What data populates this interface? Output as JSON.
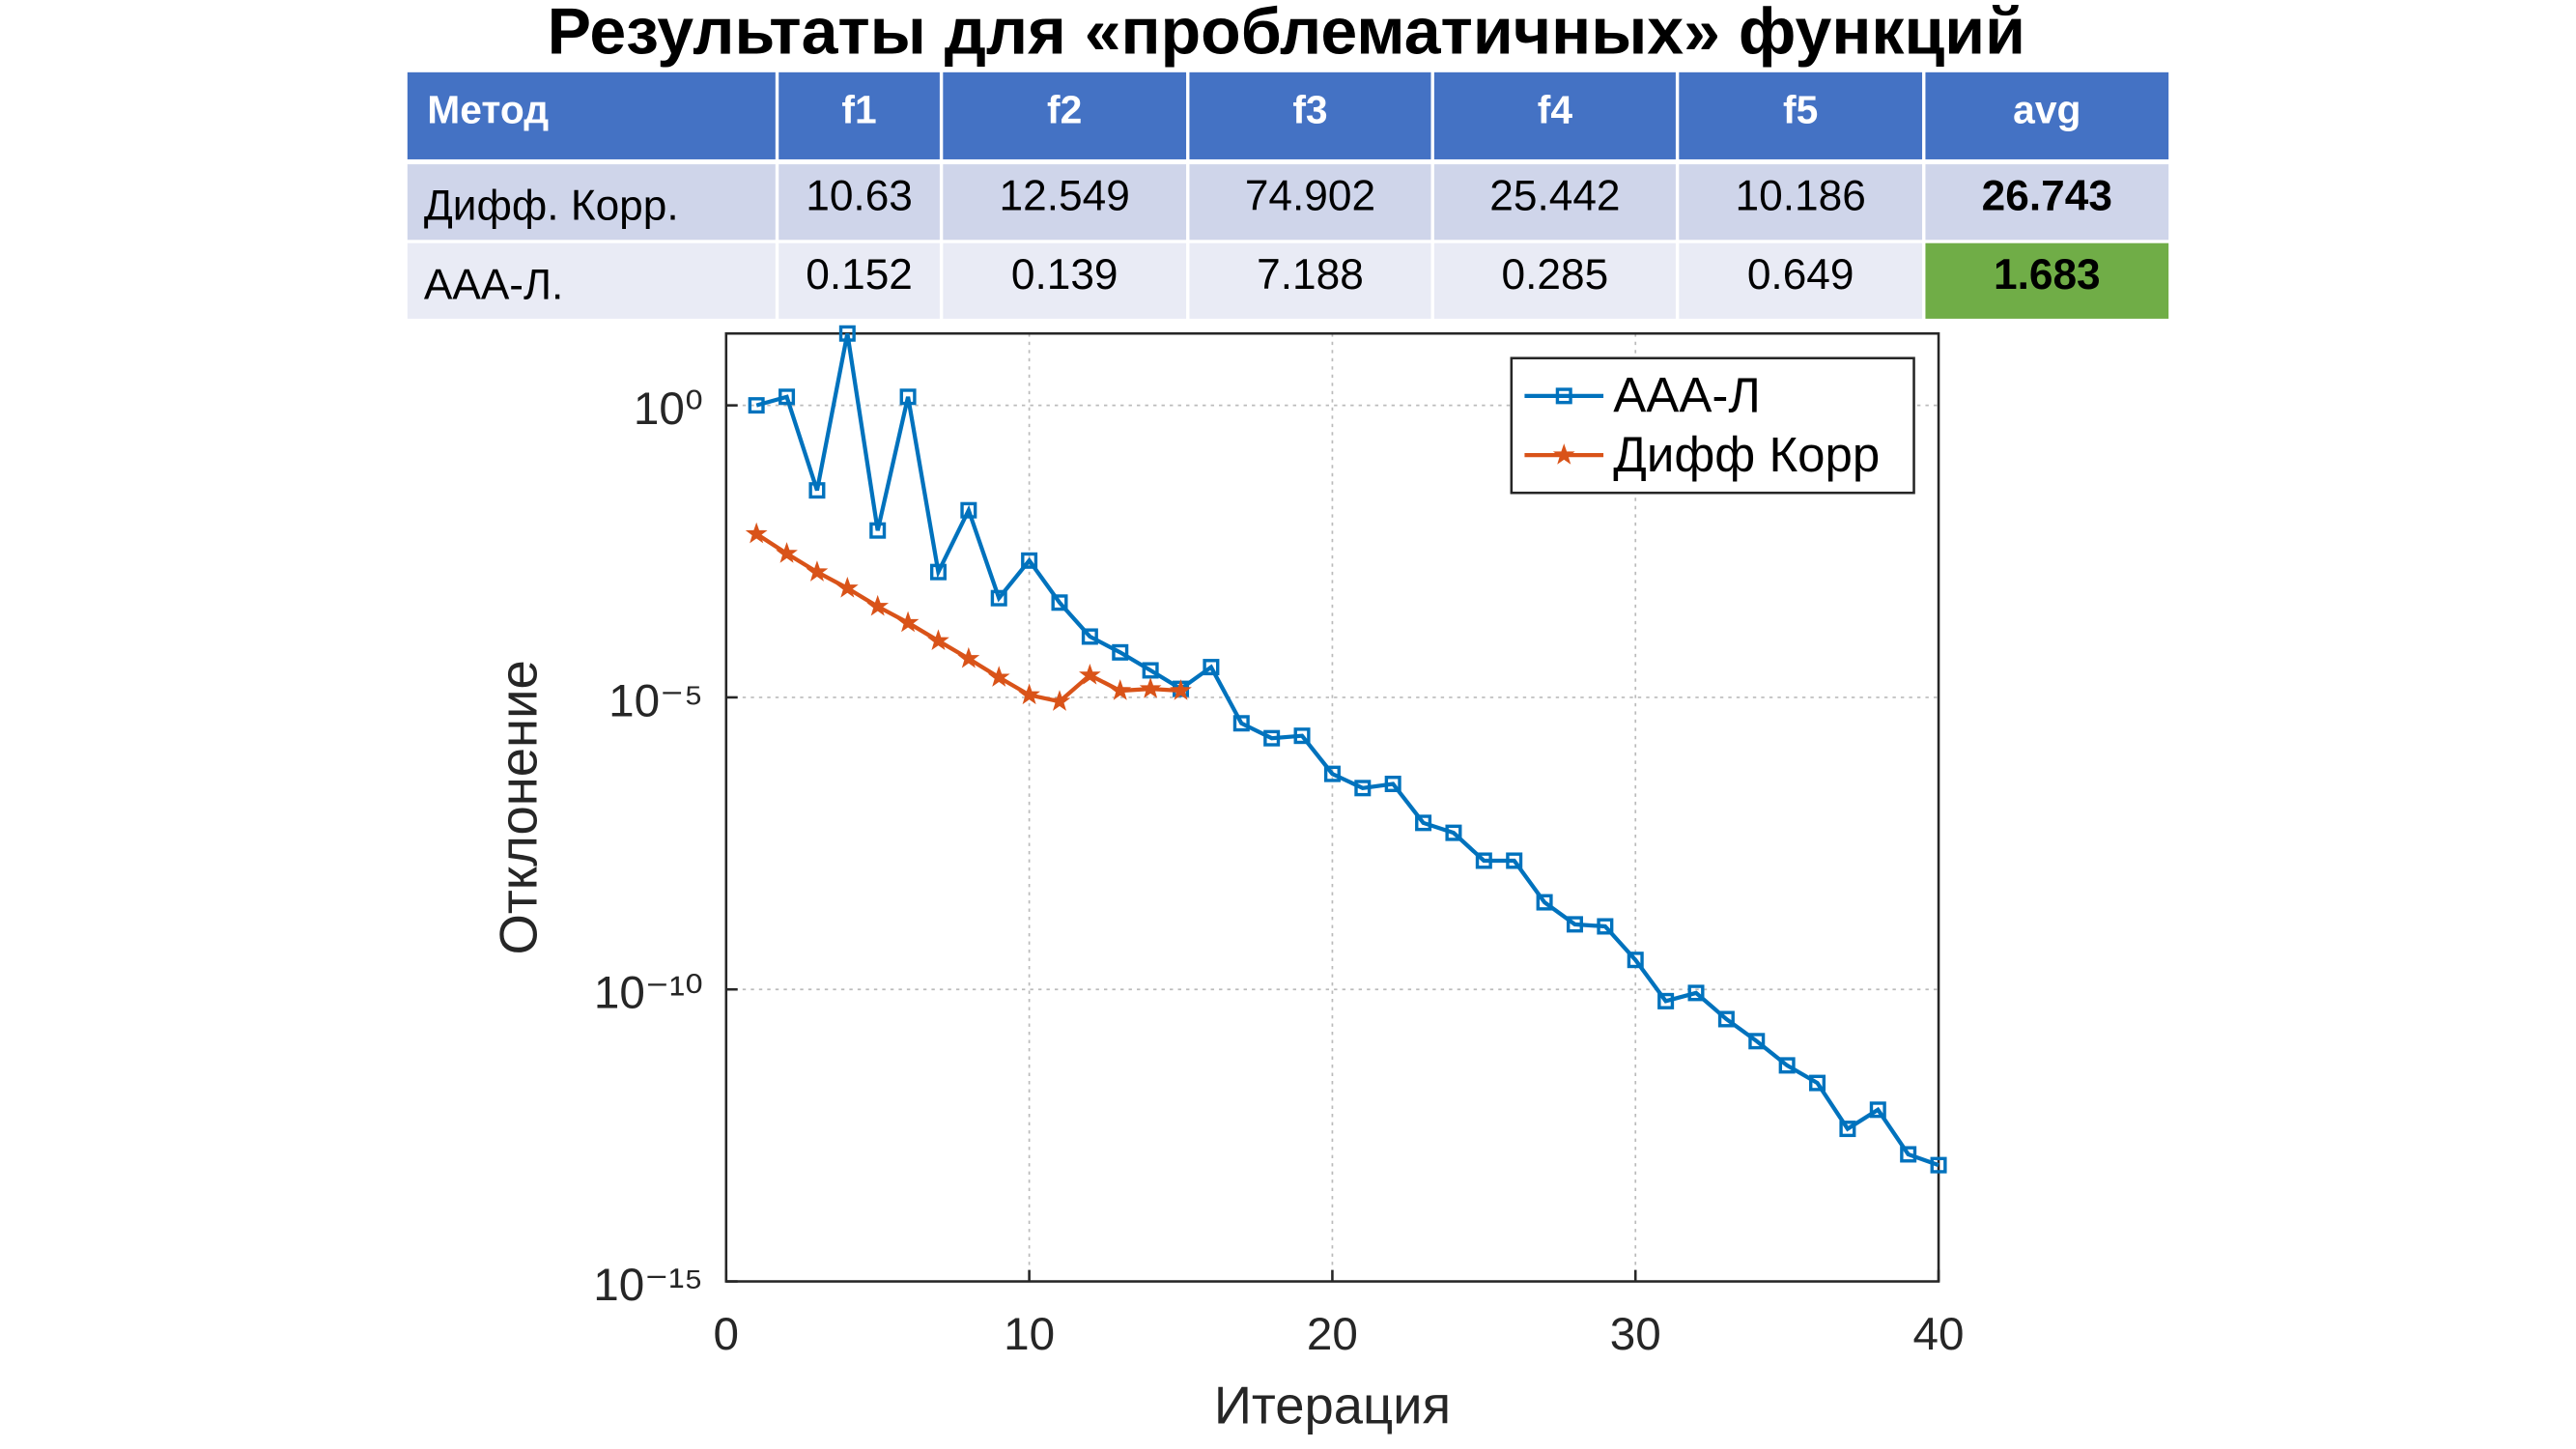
{
  "title": "Результаты для «проблематичных» функций",
  "table": {
    "header": [
      "Метод",
      "f1",
      "f2",
      "f3",
      "f4",
      "f5",
      "avg"
    ],
    "rows": [
      [
        "Дифф. Корр.",
        "10.63",
        "12.549",
        "74.902",
        "25.442",
        "10.186",
        "26.743"
      ],
      [
        "AAA-Л.",
        "0.152",
        "0.139",
        "7.188",
        "0.285",
        "0.649",
        "1.683"
      ]
    ]
  },
  "chart_data": {
    "type": "line",
    "x_label": "Итерация",
    "y_label": "Отклонение",
    "log_y": true,
    "grid": true,
    "legend_position": "top-right",
    "xlim": [
      0,
      40
    ],
    "xticks": [
      0,
      10,
      20,
      30,
      40
    ],
    "ylim": [
      1e-15,
      17
    ],
    "yticks": [
      {
        "value": 1,
        "label": "10⁰"
      },
      {
        "value": 1e-05,
        "label": "10⁻⁵"
      },
      {
        "value": 1e-10,
        "label": "10⁻¹⁰"
      },
      {
        "value": 1e-15,
        "label": "10⁻¹⁵"
      }
    ],
    "series": [
      {
        "name": "AAA-Л",
        "color": "#0072bd",
        "marker": "square",
        "x": [
          1,
          2,
          3,
          4,
          5,
          6,
          7,
          8,
          9,
          10,
          11,
          12,
          13,
          14,
          15,
          16,
          17,
          18,
          19,
          20,
          21,
          22,
          23,
          24,
          25,
          26,
          27,
          28,
          29,
          30,
          31,
          32,
          33,
          34,
          35,
          36,
          37,
          38,
          39,
          40
        ],
        "values": [
          1,
          1.4,
          0.035,
          17,
          0.0072,
          1.4,
          0.0014,
          0.016,
          0.0005,
          0.0022,
          0.00042,
          0.00011,
          5.9e-05,
          2.9e-05,
          1.4e-05,
          3.3e-05,
          3.6e-06,
          2e-06,
          2.2e-06,
          4.9e-07,
          2.8e-07,
          3.3e-07,
          7.1e-08,
          4.8e-08,
          1.6e-08,
          1.6e-08,
          3.1e-09,
          1.3e-09,
          1.2e-09,
          3.2e-10,
          6.3e-11,
          8.7e-11,
          3.1e-11,
          1.3e-11,
          5e-12,
          2.5e-12,
          4.1e-13,
          8.7e-13,
          1.5e-13,
          9.8e-14
        ]
      },
      {
        "name": "Дифф Корр",
        "color": "#d95319",
        "marker": "star",
        "x": [
          1,
          2,
          3,
          4,
          5,
          6,
          7,
          8,
          9,
          10,
          11,
          12,
          13,
          14,
          15
        ],
        "values": [
          0.0063,
          0.0029,
          0.0014,
          0.00074,
          0.00036,
          0.00019,
          9.3e-05,
          4.6e-05,
          2.2e-05,
          1.1e-05,
          8.5e-06,
          2.4e-05,
          1.3e-05,
          1.4e-05,
          1.3e-05
        ]
      }
    ]
  }
}
